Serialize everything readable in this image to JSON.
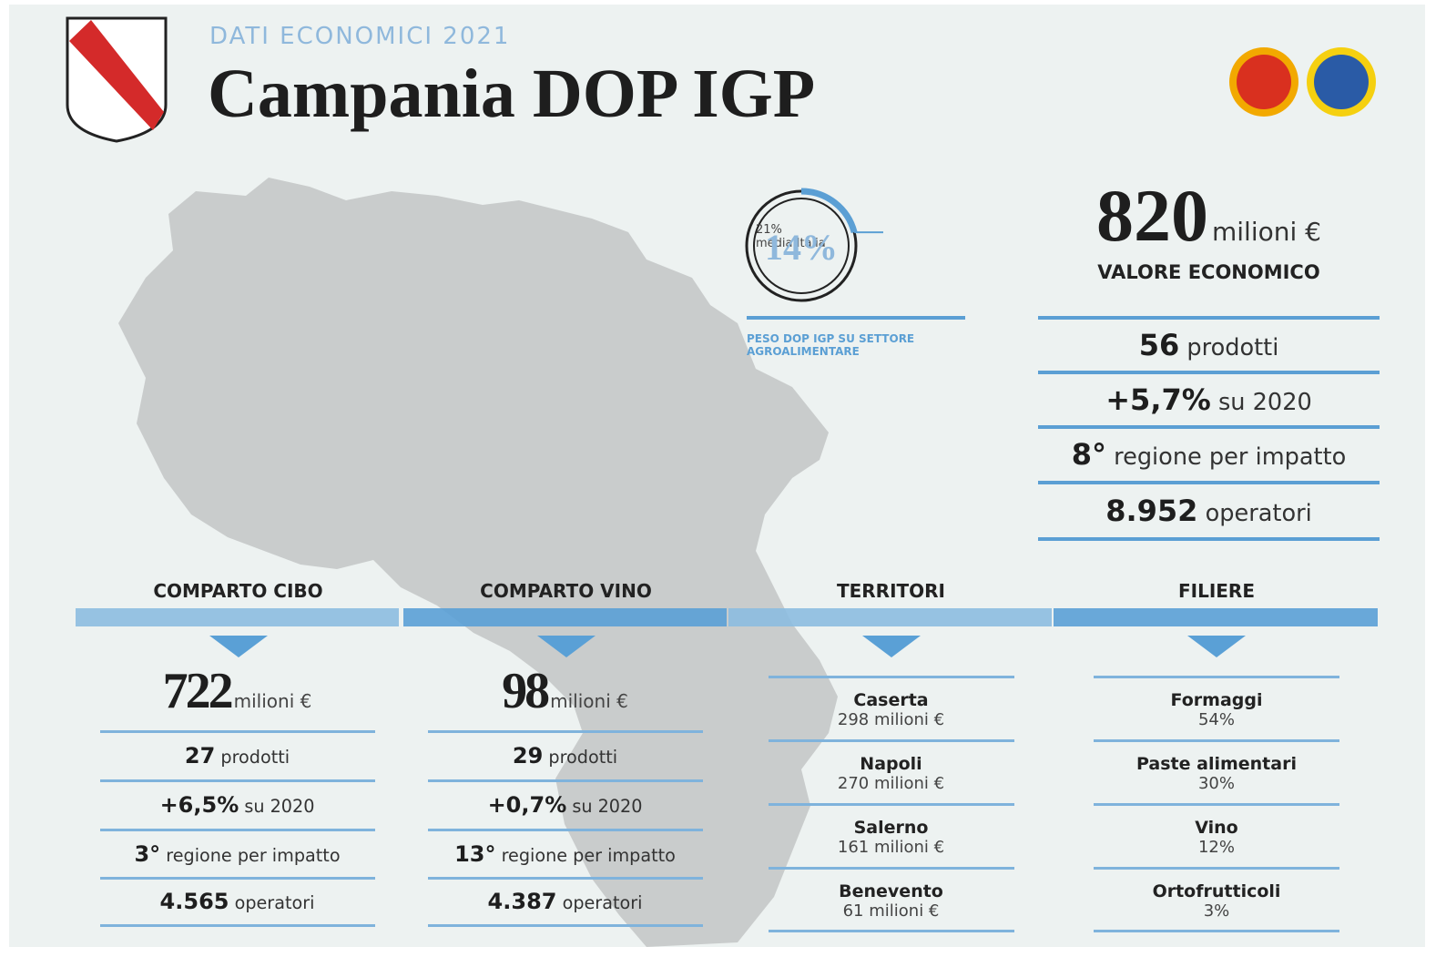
{
  "header": {
    "subtitle": "DATI ECONOMICI 2021",
    "title": "Campania DOP IGP"
  },
  "gauge": {
    "label": "14%",
    "average": 21,
    "average_label": "21%",
    "average_text": "media Italia",
    "caption": "PESO DOP IGP SU SETTORE AGROALIMENTARE"
  },
  "summary": {
    "value": "820",
    "unit": "milioni €",
    "label": "VALORE ECONOMICO",
    "rows": [
      {
        "strong": "56",
        "text": "prodotti"
      },
      {
        "strong": "+5,7%",
        "text": "su 2020"
      },
      {
        "strong": "8°",
        "text": "regione per impatto"
      },
      {
        "strong": "8.952",
        "text": "operatori"
      }
    ]
  },
  "columns": [
    {
      "title": "COMPARTO CIBO",
      "value": "722",
      "unit": "milioni €",
      "rows": [
        {
          "strong": "27",
          "text": "prodotti"
        },
        {
          "strong": "+6,5%",
          "text": "su 2020"
        },
        {
          "strong": "3°",
          "text": "regione per impatto"
        },
        {
          "strong": "4.565",
          "text": "operatori"
        }
      ]
    },
    {
      "title": "COMPARTO VINO",
      "value": "98",
      "unit": "milioni €",
      "rows": [
        {
          "strong": "29",
          "text": "prodotti"
        },
        {
          "strong": "+0,7%",
          "text": "su 2020"
        },
        {
          "strong": "13°",
          "text": "regione per impatto"
        },
        {
          "strong": "4.387",
          "text": "operatori"
        }
      ]
    },
    {
      "title": "TERRITORI",
      "items": [
        {
          "name": "Caserta",
          "detail": "298 milioni €"
        },
        {
          "name": "Napoli",
          "detail": "270 milioni €"
        },
        {
          "name": "Salerno",
          "detail": "161 milioni €"
        },
        {
          "name": "Benevento",
          "detail": "61 milioni €"
        }
      ]
    },
    {
      "title": "FILIERE",
      "items": [
        {
          "name": "Formaggi",
          "detail": "54%"
        },
        {
          "name": "Paste alimentari",
          "detail": "30%"
        },
        {
          "name": "Vino",
          "detail": "12%"
        },
        {
          "name": "Ortofrutticoli",
          "detail": "3%"
        }
      ]
    }
  ]
}
